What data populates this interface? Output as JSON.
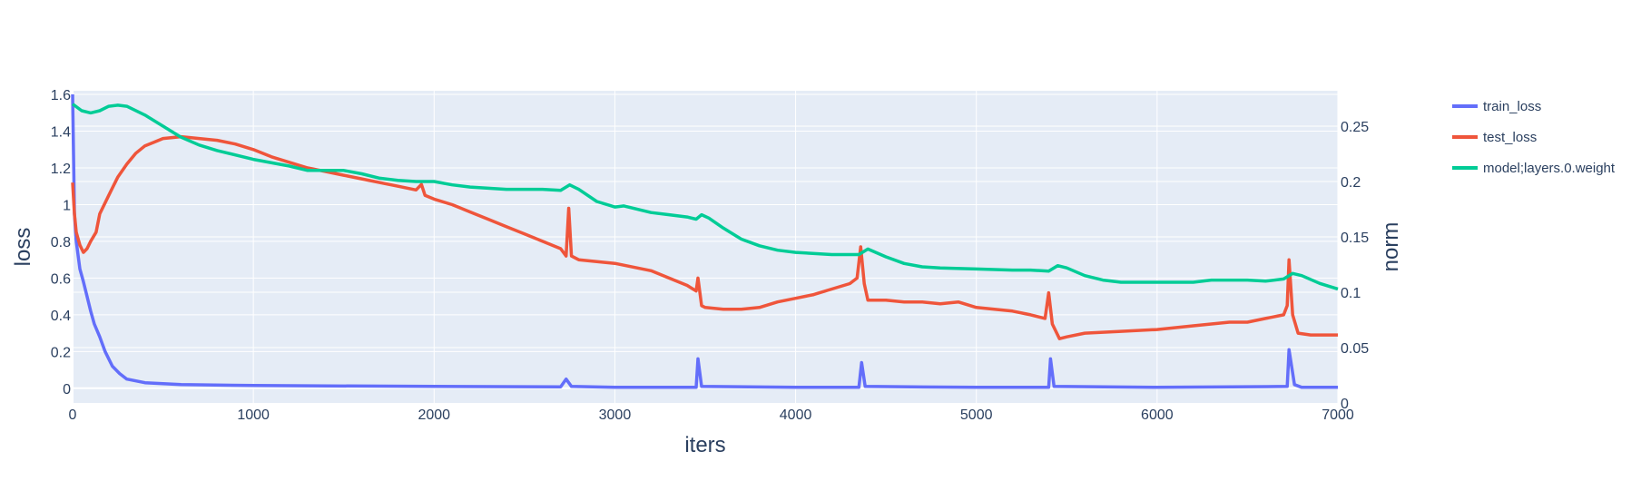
{
  "chart_data": {
    "type": "line",
    "title": "",
    "xlabel": "iters",
    "ylabel": "loss",
    "y2label": "norm",
    "xlim": [
      0,
      7000
    ],
    "ylim": [
      -0.08,
      1.62
    ],
    "y2lim": [
      0,
      0.282
    ],
    "grid": true,
    "legend_position": "top-right",
    "x_ticks": [
      "0",
      "1000",
      "2000",
      "3000",
      "4000",
      "5000",
      "6000",
      "7000"
    ],
    "y_ticks": [
      "0",
      "0.2",
      "0.4",
      "0.6",
      "0.8",
      "1",
      "1.2",
      "1.4",
      "1.6"
    ],
    "y2_ticks": [
      "0",
      "0.05",
      "0.1",
      "0.15",
      "0.2",
      "0.25"
    ],
    "series": [
      {
        "name": "train_loss",
        "color": "#636efa",
        "axis": "y",
        "points": [
          [
            0,
            1.6
          ],
          [
            10,
            0.95
          ],
          [
            20,
            0.8
          ],
          [
            40,
            0.65
          ],
          [
            60,
            0.58
          ],
          [
            80,
            0.5
          ],
          [
            100,
            0.42
          ],
          [
            120,
            0.35
          ],
          [
            150,
            0.28
          ],
          [
            180,
            0.2
          ],
          [
            220,
            0.12
          ],
          [
            260,
            0.08
          ],
          [
            300,
            0.05
          ],
          [
            400,
            0.03
          ],
          [
            600,
            0.02
          ],
          [
            1000,
            0.015
          ],
          [
            2000,
            0.01
          ],
          [
            2700,
            0.008
          ],
          [
            2730,
            0.05
          ],
          [
            2760,
            0.01
          ],
          [
            3000,
            0.005
          ],
          [
            3450,
            0.005
          ],
          [
            3460,
            0.16
          ],
          [
            3480,
            0.01
          ],
          [
            4000,
            0.005
          ],
          [
            4350,
            0.005
          ],
          [
            4365,
            0.14
          ],
          [
            4385,
            0.01
          ],
          [
            5000,
            0.005
          ],
          [
            5400,
            0.005
          ],
          [
            5410,
            0.16
          ],
          [
            5430,
            0.01
          ],
          [
            6000,
            0.005
          ],
          [
            6720,
            0.01
          ],
          [
            6730,
            0.21
          ],
          [
            6760,
            0.02
          ],
          [
            6800,
            0.005
          ],
          [
            7000,
            0.005
          ]
        ]
      },
      {
        "name": "test_loss",
        "color": "#ef553b",
        "axis": "y",
        "points": [
          [
            0,
            1.12
          ],
          [
            10,
            0.95
          ],
          [
            20,
            0.85
          ],
          [
            40,
            0.78
          ],
          [
            60,
            0.74
          ],
          [
            80,
            0.76
          ],
          [
            100,
            0.8
          ],
          [
            130,
            0.85
          ],
          [
            150,
            0.95
          ],
          [
            200,
            1.05
          ],
          [
            250,
            1.15
          ],
          [
            300,
            1.22
          ],
          [
            350,
            1.28
          ],
          [
            400,
            1.32
          ],
          [
            450,
            1.34
          ],
          [
            500,
            1.36
          ],
          [
            600,
            1.37
          ],
          [
            700,
            1.36
          ],
          [
            800,
            1.35
          ],
          [
            900,
            1.33
          ],
          [
            1000,
            1.3
          ],
          [
            1100,
            1.26
          ],
          [
            1200,
            1.23
          ],
          [
            1300,
            1.2
          ],
          [
            1400,
            1.18
          ],
          [
            1500,
            1.16
          ],
          [
            1600,
            1.14
          ],
          [
            1700,
            1.12
          ],
          [
            1800,
            1.1
          ],
          [
            1900,
            1.08
          ],
          [
            1930,
            1.11
          ],
          [
            1950,
            1.05
          ],
          [
            2000,
            1.03
          ],
          [
            2100,
            1.0
          ],
          [
            2200,
            0.96
          ],
          [
            2300,
            0.92
          ],
          [
            2400,
            0.88
          ],
          [
            2500,
            0.84
          ],
          [
            2600,
            0.8
          ],
          [
            2700,
            0.76
          ],
          [
            2730,
            0.72
          ],
          [
            2745,
            0.98
          ],
          [
            2760,
            0.72
          ],
          [
            2800,
            0.7
          ],
          [
            3000,
            0.68
          ],
          [
            3200,
            0.64
          ],
          [
            3300,
            0.6
          ],
          [
            3400,
            0.56
          ],
          [
            3450,
            0.53
          ],
          [
            3460,
            0.6
          ],
          [
            3480,
            0.45
          ],
          [
            3500,
            0.44
          ],
          [
            3600,
            0.43
          ],
          [
            3700,
            0.43
          ],
          [
            3800,
            0.44
          ],
          [
            3900,
            0.47
          ],
          [
            4000,
            0.49
          ],
          [
            4100,
            0.51
          ],
          [
            4200,
            0.54
          ],
          [
            4300,
            0.57
          ],
          [
            4340,
            0.6
          ],
          [
            4360,
            0.77
          ],
          [
            4380,
            0.57
          ],
          [
            4400,
            0.48
          ],
          [
            4500,
            0.48
          ],
          [
            4600,
            0.47
          ],
          [
            4700,
            0.47
          ],
          [
            4800,
            0.46
          ],
          [
            4900,
            0.47
          ],
          [
            5000,
            0.44
          ],
          [
            5100,
            0.43
          ],
          [
            5200,
            0.42
          ],
          [
            5300,
            0.4
          ],
          [
            5380,
            0.38
          ],
          [
            5400,
            0.52
          ],
          [
            5420,
            0.35
          ],
          [
            5460,
            0.27
          ],
          [
            5500,
            0.28
          ],
          [
            5600,
            0.3
          ],
          [
            5800,
            0.31
          ],
          [
            6000,
            0.32
          ],
          [
            6200,
            0.34
          ],
          [
            6400,
            0.36
          ],
          [
            6500,
            0.36
          ],
          [
            6600,
            0.38
          ],
          [
            6700,
            0.4
          ],
          [
            6720,
            0.45
          ],
          [
            6730,
            0.7
          ],
          [
            6750,
            0.4
          ],
          [
            6780,
            0.3
          ],
          [
            6850,
            0.29
          ],
          [
            7000,
            0.29
          ]
        ]
      },
      {
        "name": "model;layers.0.weight",
        "color": "#00cc96",
        "axis": "y2",
        "points": [
          [
            0,
            0.27
          ],
          [
            50,
            0.264
          ],
          [
            100,
            0.262
          ],
          [
            150,
            0.264
          ],
          [
            200,
            0.268
          ],
          [
            250,
            0.269
          ],
          [
            300,
            0.268
          ],
          [
            400,
            0.26
          ],
          [
            500,
            0.25
          ],
          [
            600,
            0.24
          ],
          [
            700,
            0.233
          ],
          [
            800,
            0.228
          ],
          [
            1000,
            0.22
          ],
          [
            1200,
            0.214
          ],
          [
            1300,
            0.21
          ],
          [
            1500,
            0.21
          ],
          [
            1600,
            0.207
          ],
          [
            1700,
            0.203
          ],
          [
            1800,
            0.201
          ],
          [
            1900,
            0.2
          ],
          [
            2000,
            0.2
          ],
          [
            2100,
            0.197
          ],
          [
            2200,
            0.195
          ],
          [
            2400,
            0.193
          ],
          [
            2600,
            0.193
          ],
          [
            2700,
            0.192
          ],
          [
            2750,
            0.197
          ],
          [
            2800,
            0.193
          ],
          [
            2900,
            0.182
          ],
          [
            3000,
            0.177
          ],
          [
            3050,
            0.178
          ],
          [
            3200,
            0.172
          ],
          [
            3300,
            0.17
          ],
          [
            3400,
            0.168
          ],
          [
            3450,
            0.166
          ],
          [
            3480,
            0.17
          ],
          [
            3520,
            0.167
          ],
          [
            3600,
            0.158
          ],
          [
            3700,
            0.148
          ],
          [
            3800,
            0.142
          ],
          [
            3900,
            0.138
          ],
          [
            4000,
            0.136
          ],
          [
            4200,
            0.134
          ],
          [
            4350,
            0.134
          ],
          [
            4400,
            0.139
          ],
          [
            4500,
            0.132
          ],
          [
            4600,
            0.126
          ],
          [
            4700,
            0.123
          ],
          [
            4800,
            0.122
          ],
          [
            5000,
            0.121
          ],
          [
            5200,
            0.12
          ],
          [
            5300,
            0.12
          ],
          [
            5400,
            0.119
          ],
          [
            5450,
            0.124
          ],
          [
            5500,
            0.122
          ],
          [
            5600,
            0.115
          ],
          [
            5700,
            0.111
          ],
          [
            5800,
            0.109
          ],
          [
            6000,
            0.109
          ],
          [
            6200,
            0.109
          ],
          [
            6300,
            0.111
          ],
          [
            6400,
            0.111
          ],
          [
            6500,
            0.111
          ],
          [
            6600,
            0.11
          ],
          [
            6700,
            0.112
          ],
          [
            6750,
            0.117
          ],
          [
            6800,
            0.115
          ],
          [
            6900,
            0.108
          ],
          [
            7000,
            0.103
          ]
        ]
      }
    ]
  }
}
